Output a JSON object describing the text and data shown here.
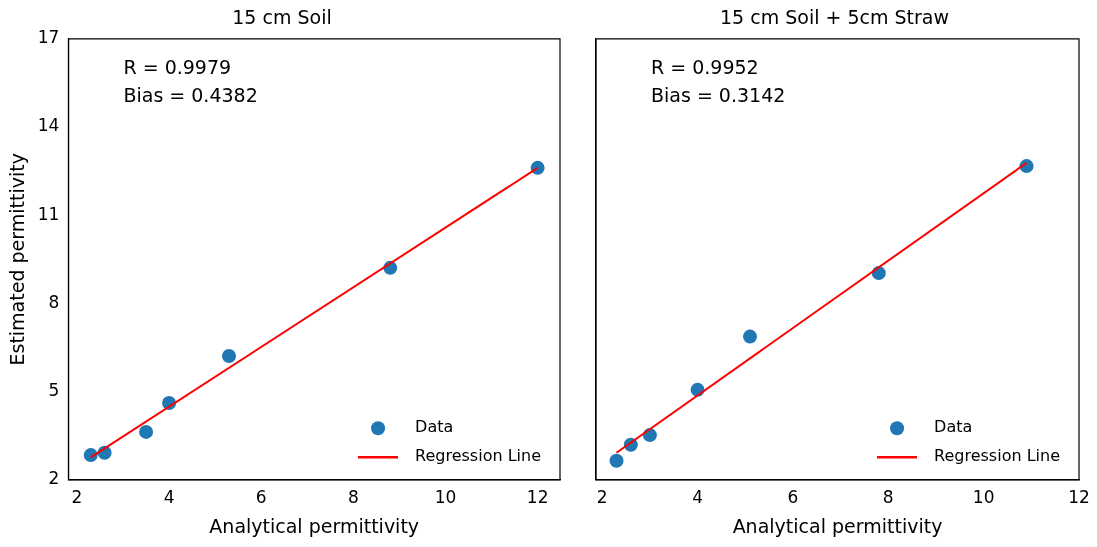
{
  "chart_data": [
    {
      "type": "scatter",
      "title": "15 cm Soil",
      "xlabel": "Analytical permittivity",
      "ylabel": "Estimated permittivity",
      "annotations": [
        "R = 0.9979",
        "Bias = 0.4382"
      ],
      "xlim": [
        1.815,
        12.485
      ],
      "xticks": [
        2,
        4,
        6,
        8,
        10,
        12
      ],
      "ylim": [
        2,
        17
      ],
      "yticks": [
        2,
        5,
        8,
        11,
        14,
        17
      ],
      "legend": "bottom right",
      "series": [
        {
          "name": "Data",
          "type": "scatter",
          "marker": "circle",
          "color": "#1f77b4",
          "x": [
            2.3,
            2.6,
            3.5,
            4.0,
            5.3,
            8.8,
            12.0
          ],
          "values": [
            2.84,
            2.92,
            3.63,
            4.61,
            6.21,
            9.21,
            12.61
          ]
        },
        {
          "name": "Regression Line",
          "type": "line",
          "marker": "none",
          "color": "#ff0000",
          "x": [
            2.3,
            12.0
          ],
          "values": [
            2.76,
            12.61
          ]
        }
      ]
    },
    {
      "type": "scatter",
      "title": "15 cm Soil + 5cm Straw",
      "xlabel": "Analytical permittivity",
      "annotations": [
        "R = 0.9952",
        "Bias = 0.3142"
      ],
      "xlim": [
        1.87,
        12
      ],
      "xticks": [
        2,
        4,
        6,
        8,
        10,
        12
      ],
      "ylim": [
        2,
        17
      ],
      "yticks": [
        2,
        5,
        8,
        11,
        14,
        17
      ],
      "tick_labels": "x",
      "legend": "bottom right",
      "series": [
        {
          "name": "Data",
          "type": "scatter",
          "marker": "circle",
          "color": "#1f77b4",
          "x": [
            2.3,
            2.6,
            3.0,
            4.0,
            5.1,
            7.8,
            10.9
          ],
          "values": [
            2.65,
            3.19,
            3.52,
            5.06,
            6.87,
            9.03,
            12.67
          ]
        },
        {
          "name": "Regression Line",
          "type": "line",
          "marker": "none",
          "color": "#ff0000",
          "x": [
            2.3,
            10.9
          ],
          "values": [
            2.92,
            12.78
          ]
        }
      ]
    }
  ]
}
